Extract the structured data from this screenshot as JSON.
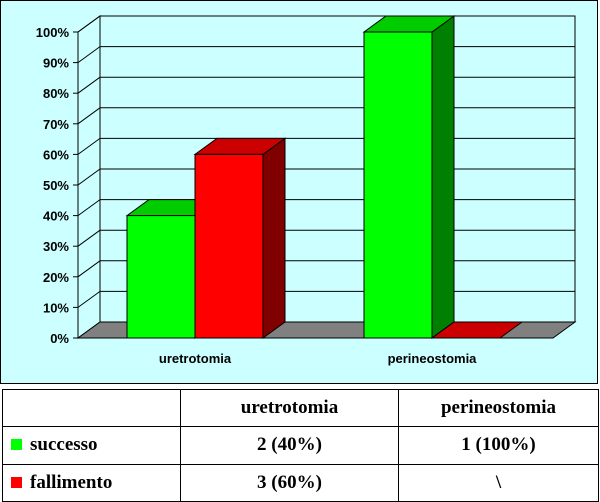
{
  "chart_data": {
    "type": "bar",
    "style": "3d-clustered-column",
    "categories": [
      "uretrotomia",
      "perineostomia"
    ],
    "series": [
      {
        "name": "successo",
        "values": [
          40,
          100
        ],
        "color": "#00ff00"
      },
      {
        "name": "fallimento",
        "values": [
          60,
          0
        ],
        "color": "#ff0000"
      }
    ],
    "y_ticks": [
      "0%",
      "10%",
      "20%",
      "30%",
      "40%",
      "50%",
      "60%",
      "70%",
      "80%",
      "90%",
      "100%"
    ],
    "ylim": [
      0,
      100
    ],
    "grid": true,
    "legend": "data-table",
    "colors": {
      "plot_background": "#ccffff",
      "floor": "#808080"
    }
  },
  "table": {
    "columns": [
      "",
      "uretrotomia",
      "perineostomia"
    ],
    "rows": [
      {
        "label": "successo",
        "color": "#00ff00",
        "cells": [
          "2 (40%)",
          "1 (100%)"
        ]
      },
      {
        "label": "fallimento",
        "color": "#ff0000",
        "cells": [
          "3 (60%)",
          "\\"
        ]
      }
    ]
  }
}
